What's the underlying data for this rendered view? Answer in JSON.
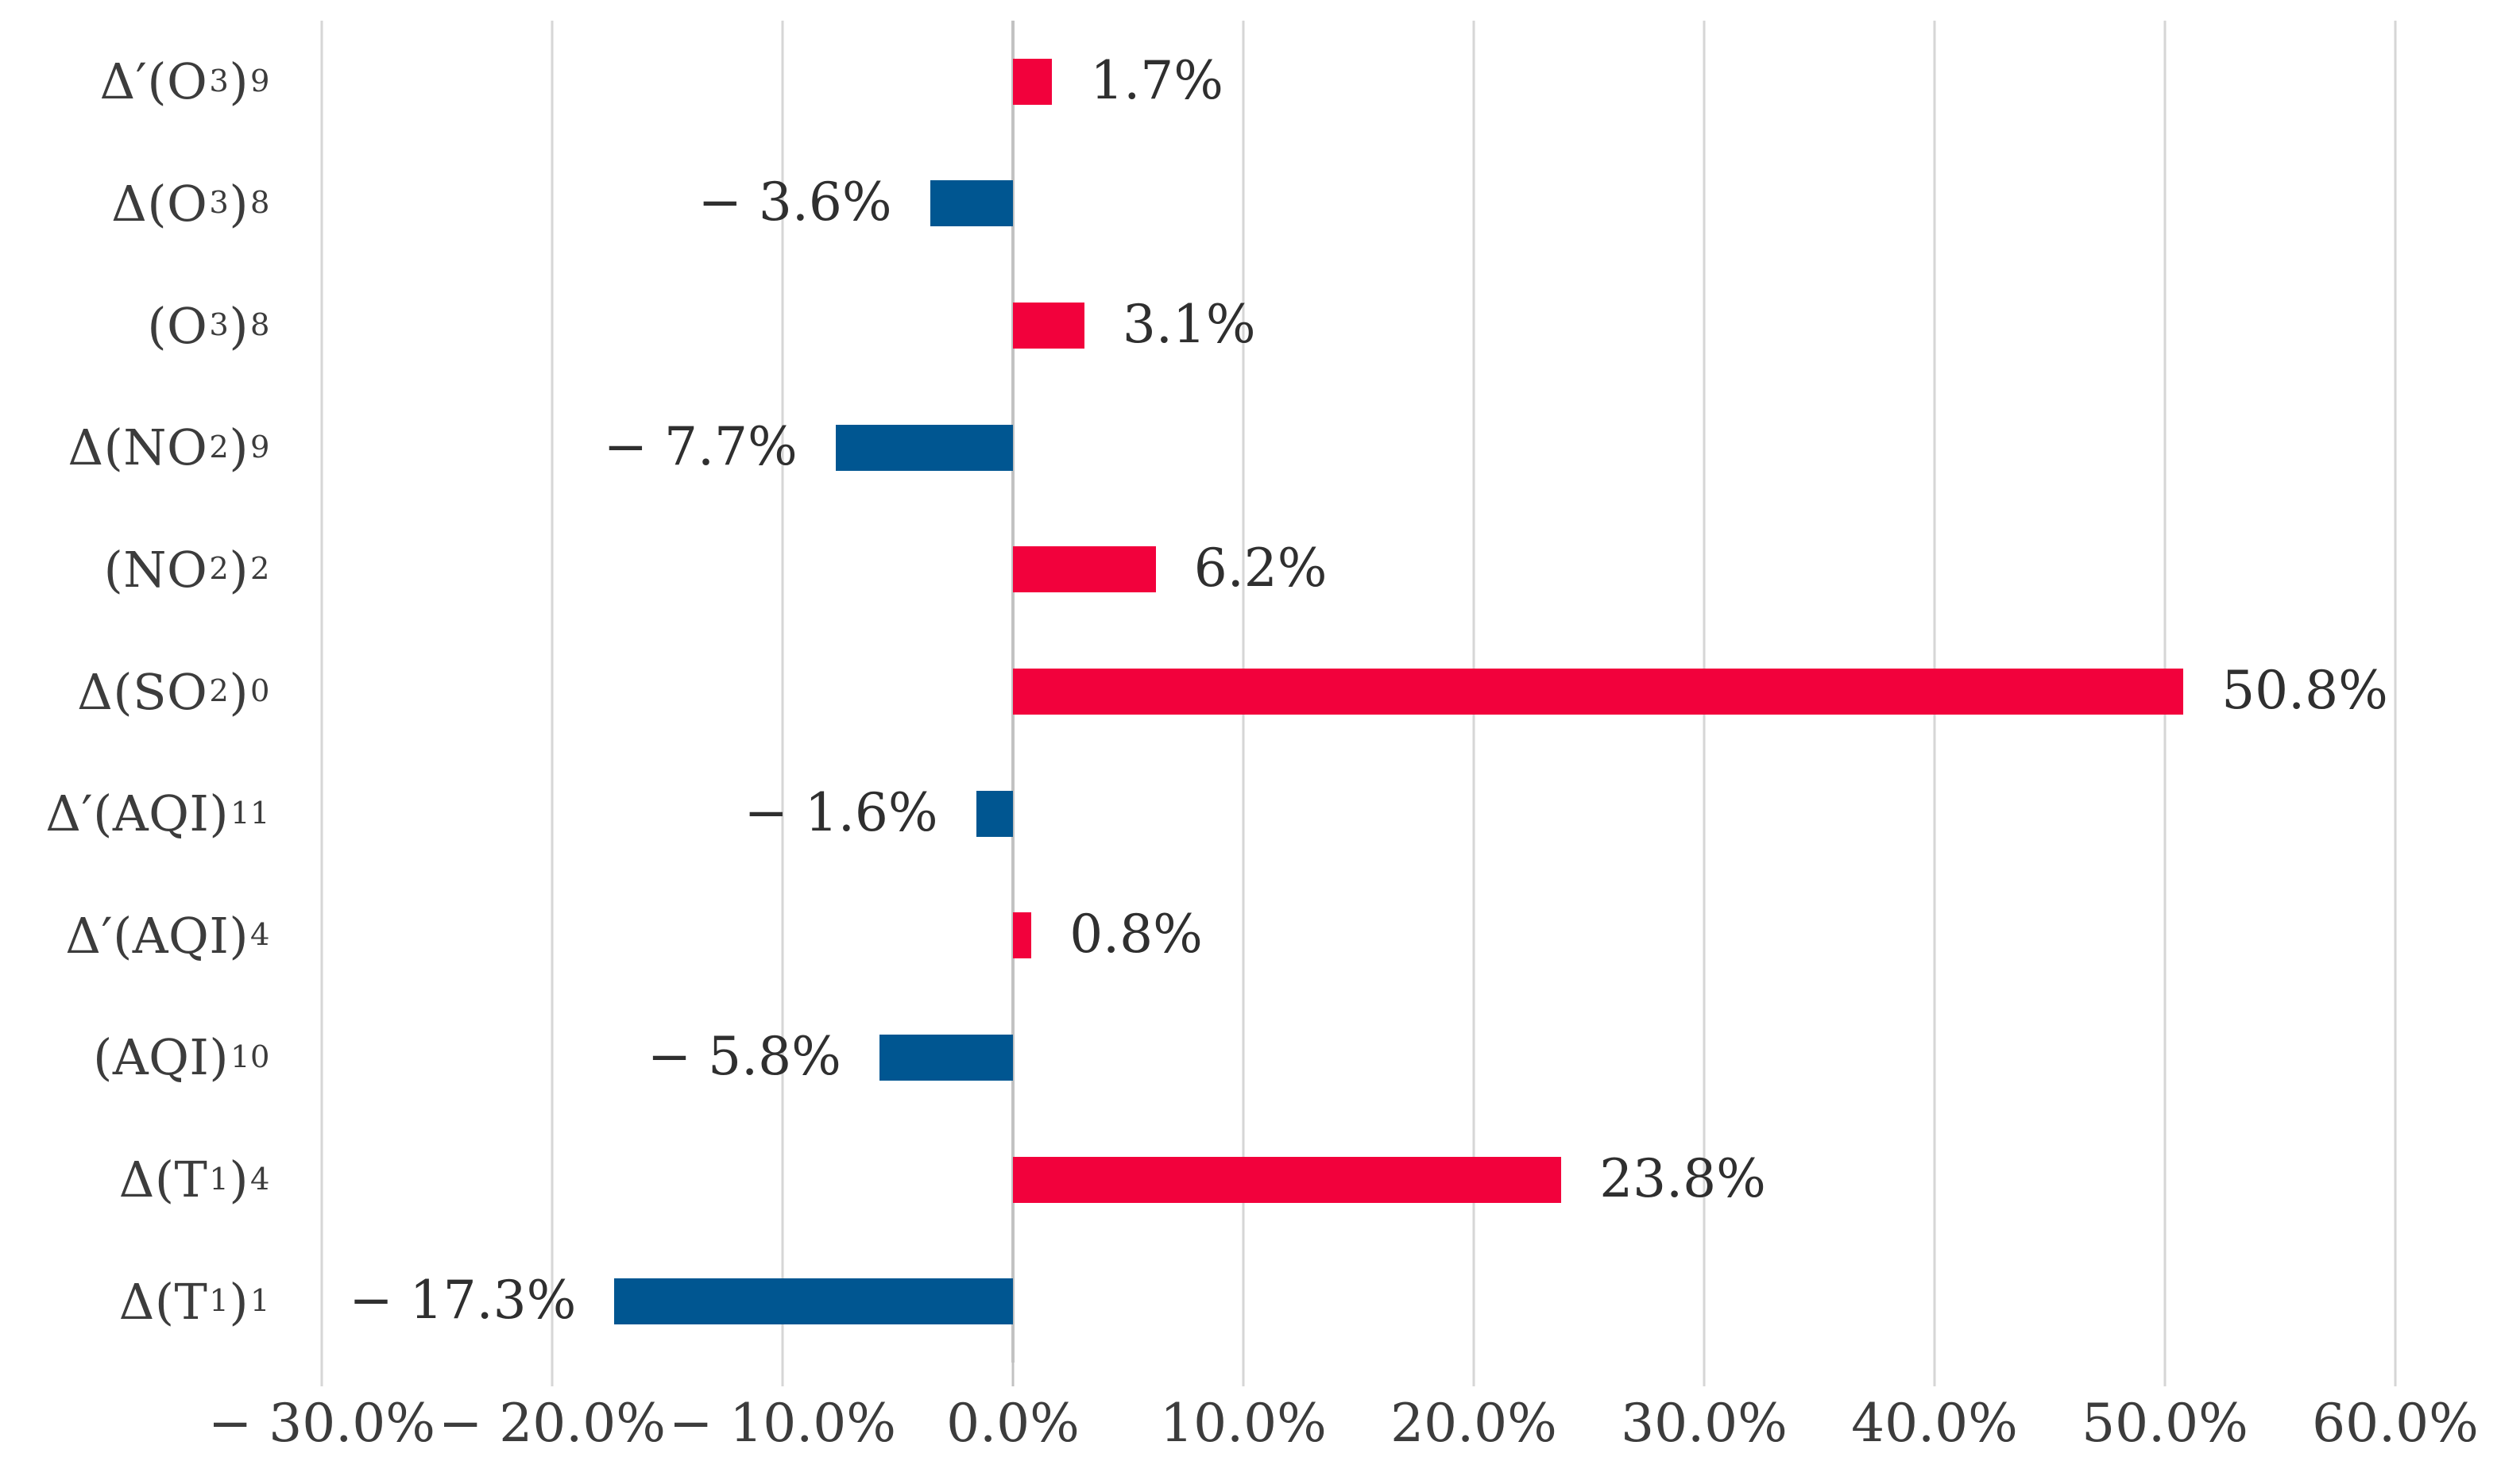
{
  "chart_data": {
    "type": "bar",
    "orientation": "horizontal",
    "title": "",
    "categories": [
      "Δ′(O₃)₉",
      "Δ(O₃)₈",
      "(O₃)₈",
      "Δ(NO₂)₉",
      "(NO₂)₂",
      "Δ(SO₂)₀",
      "Δ′(AQI)₁₁",
      "Δ′(AQI)₄",
      "(AQI)₁₀",
      "Δ(T₁)₄",
      "Δ(T₁)₁"
    ],
    "values": [
      1.7,
      -3.6,
      3.1,
      -7.7,
      6.2,
      50.8,
      -1.6,
      0.8,
      -5.8,
      23.8,
      -17.3
    ],
    "value_labels": [
      "1.7%",
      "− 3.6%",
      "3.1%",
      "− 7.7%",
      "6.2%",
      "50.8%",
      "− 1.6%",
      "0.8%",
      "− 5.8%",
      "23.8%",
      "− 17.3%"
    ],
    "x_tick_values": [
      -30,
      -20,
      -10,
      0,
      10,
      20,
      30,
      40,
      50,
      60
    ],
    "x_tick_labels": [
      "− 30.0%",
      "− 20.0%",
      "− 10.0%",
      "0.0%",
      "10.0%",
      "20.0%",
      "30.0%",
      "40.0%",
      "50.0%",
      "60.0%"
    ],
    "xlim": [
      -30,
      60
    ],
    "grid": true,
    "legend": "none",
    "colors": {
      "positive": "#f2013c",
      "negative": "#005691",
      "gridline": "#d6d6d6",
      "zero_line": "#c2c2c2",
      "value_text": "#2f2f2f",
      "axis_text": "#3c3c3c"
    }
  }
}
